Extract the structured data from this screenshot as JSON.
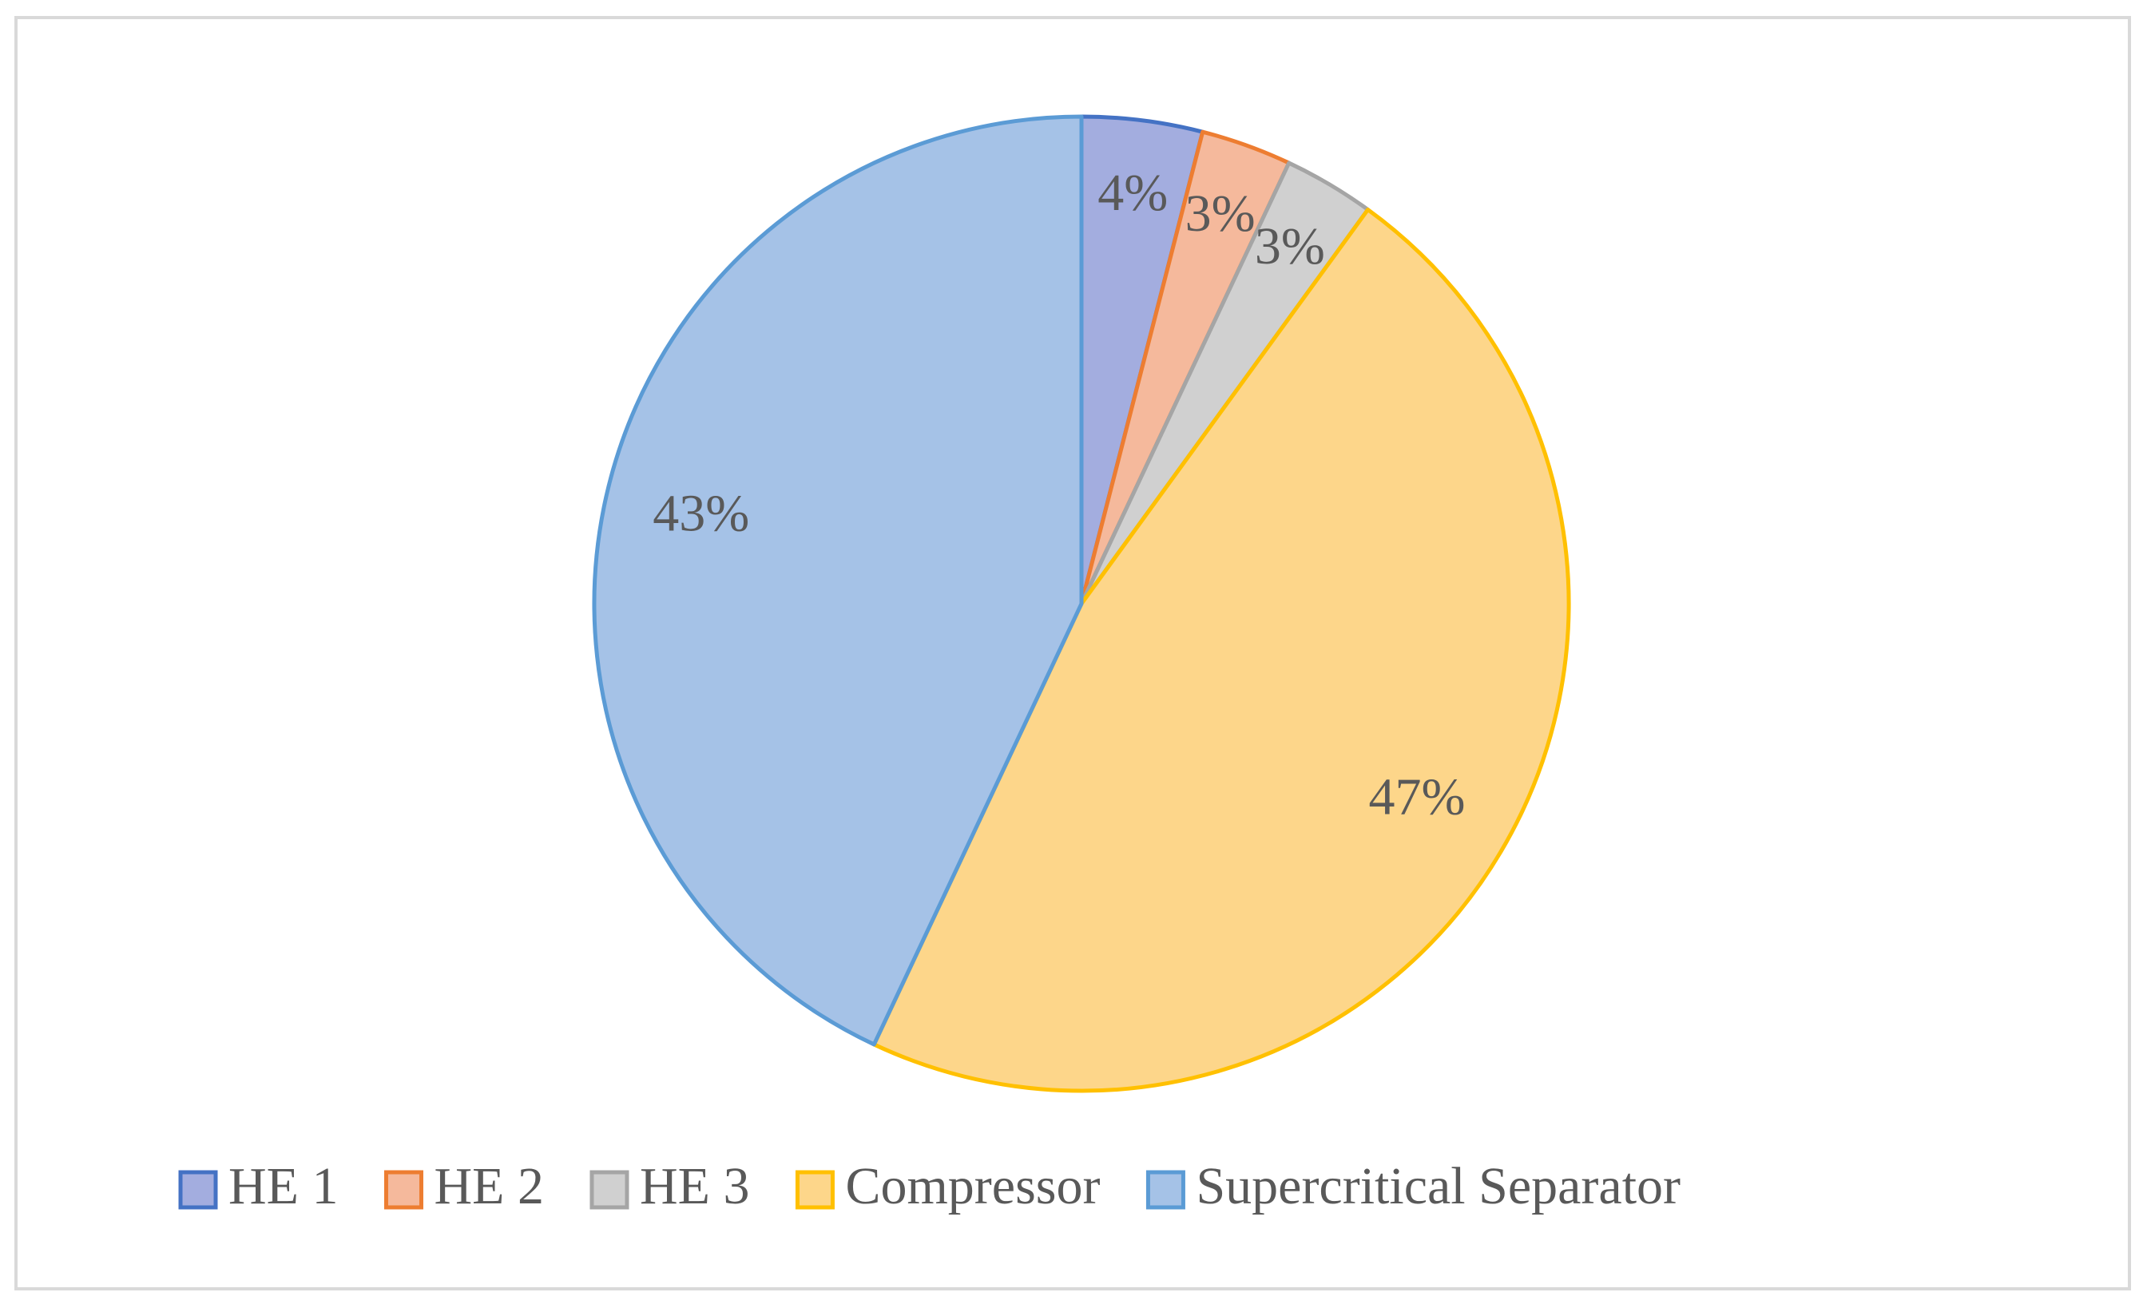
{
  "chart_data": {
    "type": "pie",
    "categories": [
      "HE 1",
      "HE 2",
      "HE 3",
      "Compressor",
      "Supercritical Separator"
    ],
    "values": [
      4,
      3,
      3,
      47,
      43
    ],
    "value_labels": [
      "4%",
      "3%",
      "3%",
      "47%",
      "43%"
    ],
    "colors": [
      "#a3addf",
      "#f5b99c",
      "#d0d0d0",
      "#fdd68a",
      "#a5c2e7"
    ],
    "edge_colors": [
      "#4472c4",
      "#ed7d31",
      "#a5a5a5",
      "#ffc000",
      "#5b9bd5"
    ],
    "legend": "bottom"
  }
}
